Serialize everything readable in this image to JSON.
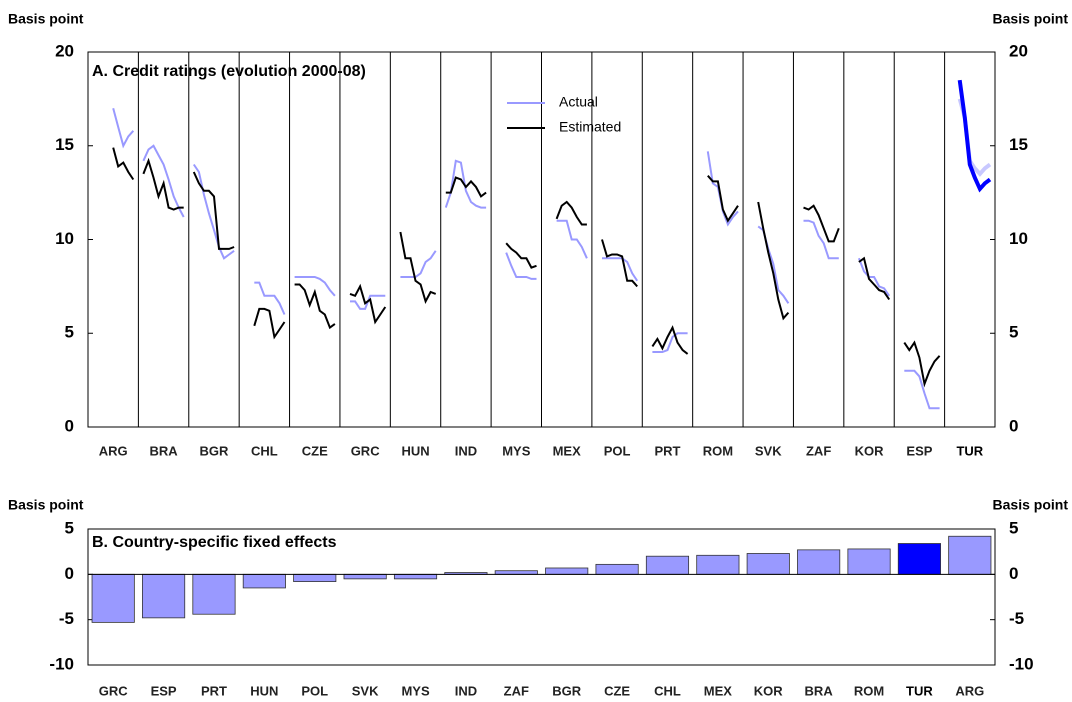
{
  "chart_data": [
    {
      "type": "line-panels",
      "title": "A. Credit ratings (evolution 2000-08)",
      "ylabel": "Basis point",
      "y2label": "Basis point",
      "ylim": [
        0,
        20
      ],
      "yticks": [
        0,
        5,
        10,
        15,
        20
      ],
      "highlight": "TUR",
      "categories": [
        "ARG",
        "BRA",
        "BGR",
        "CHL",
        "CZE",
        "GRC",
        "HUN",
        "IND",
        "MYS",
        "MEX",
        "POL",
        "PRT",
        "ROM",
        "SVK",
        "ZAF",
        "KOR",
        "ESP",
        "TUR"
      ],
      "series": [
        {
          "name": "Actual",
          "color": "#9999ff",
          "highlight_color": "#c8c8ff",
          "values": [
            [
              null,
              null,
              null,
              null,
              17.0,
              16.0,
              15.0,
              15.5,
              15.8
            ],
            [
              14.2,
              14.8,
              15.0,
              14.5,
              14.0,
              13.2,
              12.3,
              11.7,
              11.2
            ],
            [
              14.0,
              13.6,
              12.4,
              11.4,
              10.5,
              9.6,
              9.0,
              9.2,
              9.4
            ],
            [
              null,
              null,
              7.7,
              7.7,
              7.0,
              7.0,
              7.0,
              6.6,
              6.0
            ],
            [
              8.0,
              8.0,
              8.0,
              8.0,
              8.0,
              7.9,
              7.7,
              7.3,
              7.0
            ],
            [
              null,
              6.7,
              6.7,
              6.3,
              6.3,
              7.0,
              7.0,
              7.0,
              7.0
            ],
            [
              null,
              8.0,
              8.0,
              8.0,
              8.0,
              8.2,
              8.8,
              9.0,
              9.4
            ],
            [
              11.7,
              12.5,
              14.2,
              14.1,
              12.6,
              12.0,
              11.8,
              11.7,
              11.7
            ],
            [
              null,
              null,
              9.3,
              8.6,
              8.0,
              8.0,
              8.0,
              7.9,
              7.9
            ],
            [
              null,
              null,
              11.0,
              11.0,
              11.0,
              10.0,
              10.0,
              9.6,
              9.0
            ],
            [
              null,
              9.0,
              9.0,
              9.0,
              9.0,
              9.0,
              8.8,
              8.2,
              7.8
            ],
            [
              null,
              4.0,
              4.0,
              4.0,
              4.1,
              4.8,
              5.0,
              5.0,
              5.0
            ],
            [
              null,
              null,
              14.7,
              13.0,
              12.8,
              11.5,
              10.8,
              11.2,
              11.5
            ],
            [
              null,
              null,
              10.7,
              10.5,
              9.5,
              8.7,
              7.3,
              7.0,
              6.6
            ],
            [
              null,
              11.0,
              11.0,
              10.9,
              10.2,
              9.8,
              9.0,
              9.0,
              9.0
            ],
            [
              null,
              null,
              9.0,
              8.3,
              8.0,
              8.0,
              7.5,
              7.4,
              7.0
            ],
            [
              null,
              3.0,
              3.0,
              3.0,
              2.7,
              1.8,
              1.0,
              1.0,
              1.0
            ],
            [
              null,
              null,
              17.5,
              16.5,
              14.2,
              13.8,
              13.5,
              13.8,
              14.0
            ]
          ]
        },
        {
          "name": "Estimated",
          "color": "#000000",
          "highlight_color": "#0000ff",
          "values": [
            [
              null,
              null,
              null,
              null,
              14.9,
              13.9,
              14.1,
              13.6,
              13.2
            ],
            [
              13.5,
              14.2,
              13.3,
              12.3,
              13.0,
              11.7,
              11.6,
              11.7,
              11.7
            ],
            [
              13.6,
              13.0,
              12.6,
              12.6,
              12.3,
              9.5,
              9.5,
              9.5,
              9.6
            ],
            [
              null,
              null,
              5.4,
              6.3,
              6.3,
              6.2,
              4.8,
              5.2,
              5.6
            ],
            [
              7.6,
              7.6,
              7.3,
              6.5,
              7.2,
              6.2,
              6.0,
              5.3,
              5.5
            ],
            [
              null,
              7.1,
              7.0,
              7.5,
              6.6,
              6.8,
              5.6,
              6.0,
              6.4
            ],
            [
              null,
              10.4,
              9.0,
              9.0,
              7.8,
              7.6,
              6.7,
              7.2,
              7.1
            ],
            [
              12.5,
              12.5,
              13.3,
              13.2,
              12.8,
              13.1,
              12.8,
              12.3,
              12.5
            ],
            [
              null,
              null,
              9.8,
              9.5,
              9.3,
              9.0,
              9.0,
              8.5,
              8.6
            ],
            [
              null,
              null,
              11.1,
              11.8,
              12.0,
              11.7,
              11.2,
              10.8,
              10.8
            ],
            [
              null,
              10.0,
              9.1,
              9.2,
              9.2,
              9.1,
              7.8,
              7.8,
              7.5
            ],
            [
              null,
              4.3,
              4.7,
              4.2,
              4.8,
              5.3,
              4.5,
              4.1,
              3.9
            ],
            [
              null,
              null,
              13.4,
              13.1,
              13.1,
              11.6,
              11.0,
              11.4,
              11.8
            ],
            [
              null,
              null,
              12.0,
              10.6,
              9.3,
              8.2,
              6.8,
              5.8,
              6.1
            ],
            [
              null,
              11.7,
              11.6,
              11.8,
              11.3,
              10.6,
              9.9,
              9.9,
              10.6
            ],
            [
              null,
              null,
              8.8,
              9.0,
              7.9,
              7.6,
              7.3,
              7.2,
              6.8
            ],
            [
              null,
              4.5,
              4.1,
              4.5,
              3.7,
              2.3,
              3.0,
              3.5,
              3.8
            ],
            [
              null,
              null,
              18.5,
              16.5,
              14.0,
              13.3,
              12.7,
              13.0,
              13.2
            ]
          ]
        }
      ]
    },
    {
      "type": "bar",
      "title": "B. Country-specific fixed effects",
      "ylabel": "Basis point",
      "y2label": "Basis point",
      "ylim": [
        -10,
        5
      ],
      "yticks": [
        -10,
        -5,
        0,
        5
      ],
      "highlight": "TUR",
      "categories": [
        "GRC",
        "ESP",
        "PRT",
        "HUN",
        "POL",
        "SVK",
        "MYS",
        "IND",
        "ZAF",
        "BGR",
        "CZE",
        "CHL",
        "MEX",
        "KOR",
        "BRA",
        "ROM",
        "TUR",
        "ARG"
      ],
      "values": [
        -5.3,
        -4.8,
        -4.4,
        -1.5,
        -0.8,
        -0.5,
        -0.5,
        0.2,
        0.4,
        0.7,
        1.1,
        2.0,
        2.1,
        2.3,
        2.7,
        2.8,
        3.4,
        4.2
      ],
      "color": "#9999ff",
      "highlight_color": "#0000ff"
    }
  ]
}
